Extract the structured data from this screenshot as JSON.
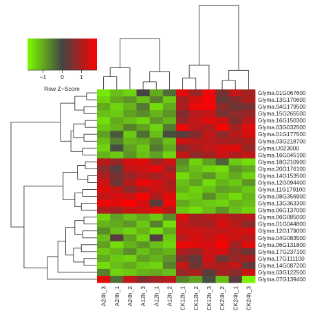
{
  "chart_data": {
    "type": "heatmap",
    "title": "",
    "colorkey": {
      "title": "Row Z−Score",
      "ticks": [
        "−1",
        "0",
        "1"
      ],
      "tick_values": [
        -1,
        0,
        1
      ],
      "range": [
        -1.8,
        1.8
      ],
      "low_color": "#7cfc00",
      "mid_color": "#444444",
      "high_color": "#ff0000"
    },
    "columns": [
      "A24h_3",
      "A24h_1",
      "A24h_2",
      "A12h_3",
      "A12h_1",
      "A12h_2",
      "CK12h_1",
      "CK12h_2",
      "CK12h_3",
      "CK24h_2",
      "CK24h_1",
      "CK24h_3"
    ],
    "rows": [
      "Glyma.01G067600",
      "Glyma.13G170600",
      "Glyma.04G179500",
      "Glyma.15G265500",
      "Glyma.16G150300",
      "Glyma.03G032500",
      "Glyma.01G177500",
      "Glyma.03G218700",
      "Glyma.U023000",
      "Glyma.16G045100",
      "Glyma.18G210900",
      "Glyma.20G176100",
      "Glyma.14G153500",
      "Glyma.12G094400",
      "Glyma.11G179100",
      "Glyma.08G356900",
      "Glyma.13G363300",
      "Glyma.06G137000",
      "Glyma.06G085000",
      "Glyma.01G044800",
      "Glyma.12G179000",
      "Glyma.04G083500",
      "Glyma.06G131800",
      "Glyma.17G237100",
      "Glyma.17G111100",
      "Glyma.14G087200",
      "Glyma.03G122500",
      "Glyma.07G139400"
    ],
    "values": [
      [
        -1.6,
        -1.2,
        -1.4,
        0.0,
        -1.0,
        -0.4,
        1.5,
        0.8,
        1.6,
        0.5,
        1.2,
        0.9
      ],
      [
        -1.4,
        -1.0,
        -0.8,
        -1.2,
        -0.6,
        -1.3,
        0.9,
        1.4,
        1.7,
        0.3,
        0.6,
        1.0
      ],
      [
        -1.0,
        -1.4,
        -1.1,
        -0.5,
        -1.5,
        -1.0,
        1.0,
        1.6,
        1.7,
        0.7,
        0.4,
        0.5
      ],
      [
        -1.2,
        -1.3,
        -0.9,
        -0.7,
        -1.1,
        -0.8,
        0.6,
        1.1,
        1.2,
        0.5,
        0.7,
        0.8
      ],
      [
        -1.5,
        -1.0,
        -1.2,
        -1.4,
        -0.8,
        -1.1,
        0.8,
        1.2,
        1.5,
        1.3,
        0.6,
        1.1
      ],
      [
        -1.3,
        -1.1,
        -0.6,
        -0.9,
        -1.4,
        -0.5,
        1.6,
        1.1,
        1.0,
        1.7,
        0.9,
        1.5
      ],
      [
        -0.9,
        -0.2,
        -1.3,
        -0.4,
        -1.2,
        -0.1,
        0.2,
        0.6,
        1.2,
        0.7,
        1.1,
        1.4
      ],
      [
        -1.2,
        -0.6,
        -1.1,
        -1.0,
        -0.7,
        -1.2,
        1.3,
        1.1,
        1.1,
        1.0,
        0.9,
        1.0
      ],
      [
        -1.4,
        -0.1,
        -0.9,
        -1.3,
        -0.5,
        -1.0,
        0.6,
        1.0,
        1.2,
        1.4,
        1.5,
        0.8
      ],
      [
        -1.1,
        -1.3,
        -0.8,
        -1.2,
        -0.9,
        -1.4,
        1.2,
        0.7,
        0.9,
        1.3,
        1.0,
        1.2
      ],
      [
        1.1,
        0.8,
        1.4,
        1.5,
        0.9,
        1.3,
        -0.7,
        -1.4,
        -0.9,
        -0.3,
        -1.3,
        -1.5
      ],
      [
        0.7,
        0.2,
        1.2,
        1.3,
        1.6,
        0.9,
        -0.9,
        -1.2,
        -1.4,
        -1.5,
        -0.8,
        -1.0
      ],
      [
        1.0,
        0.5,
        0.8,
        1.1,
        0.9,
        1.2,
        -1.5,
        -1.1,
        -0.8,
        -1.3,
        -1.0,
        -1.4
      ],
      [
        1.3,
        0.4,
        1.1,
        1.6,
        1.4,
        1.0,
        -1.2,
        -0.9,
        -1.5,
        -1.1,
        -1.3,
        -0.8
      ],
      [
        1.5,
        1.2,
        0.7,
        1.0,
        1.3,
        1.1,
        -1.1,
        -1.4,
        -1.2,
        -0.9,
        -1.0,
        -1.3
      ],
      [
        1.2,
        1.4,
        1.3,
        1.7,
        1.0,
        1.5,
        -1.4,
        -1.3,
        -0.7,
        -1.2,
        -1.5,
        -1.1
      ],
      [
        1.6,
        1.5,
        1.8,
        1.4,
        0.2,
        1.6,
        -1.0,
        -1.2,
        -1.3,
        -1.4,
        -1.1,
        -1.2
      ],
      [
        1.0,
        0.9,
        1.2,
        1.3,
        1.5,
        1.1,
        -1.3,
        -1.5,
        -1.2,
        -0.8,
        -1.2,
        -1.4
      ],
      [
        -1.4,
        -0.9,
        -1.2,
        -1.0,
        -1.3,
        -0.7,
        1.4,
        0.9,
        1.1,
        1.2,
        1.0,
        1.1
      ],
      [
        -1.1,
        -1.0,
        -0.8,
        -1.3,
        -0.6,
        -1.5,
        1.2,
        1.0,
        0.9,
        1.4,
        1.1,
        0.7
      ],
      [
        -0.7,
        -1.2,
        -1.4,
        -1.1,
        -1.5,
        -1.0,
        1.3,
        1.3,
        1.2,
        1.2,
        1.3,
        1.4
      ],
      [
        -1.2,
        0.2,
        -0.9,
        -1.4,
        0.1,
        -1.3,
        1.1,
        1.4,
        1.2,
        1.5,
        1.3,
        1.1
      ],
      [
        -0.9,
        -1.5,
        -1.1,
        -0.8,
        -1.2,
        -1.4,
        1.6,
        1.5,
        1.4,
        1.7,
        0.9,
        1.5
      ],
      [
        -1.3,
        -1.1,
        -0.7,
        -1.2,
        -0.9,
        -1.1,
        1.0,
        0.8,
        1.3,
        1.4,
        0.7,
        0.4
      ],
      [
        -1.0,
        -1.3,
        -1.4,
        -0.9,
        -1.1,
        -0.8,
        0.6,
        0.3,
        1.3,
        0.4,
        0.8,
        1.0
      ],
      [
        -1.5,
        -1.2,
        -1.0,
        -1.3,
        -1.4,
        -0.6,
        1.2,
        0.4,
        1.1,
        1.0,
        1.2,
        0.3
      ],
      [
        -0.6,
        -1.4,
        -1.3,
        -1.1,
        -1.0,
        -1.2,
        0.8,
        1.0,
        0.2,
        0.9,
        0.7,
        1.3
      ],
      [
        1.5,
        -0.4,
        1.2,
        0.6,
        0.9,
        1.1,
        -0.6,
        -0.9,
        -0.1,
        -1.2,
        0.2,
        -1.7
      ]
    ],
    "col_dendrogram": [
      {
        "left": 0,
        "right": 1,
        "height": 0.5
      },
      {
        "left": 3,
        "right": 4,
        "height": 0.3
      },
      {
        "left": 6,
        "right": 7,
        "height": 0.45
      },
      {
        "left": 9,
        "right": 10,
        "height": 0.35
      },
      {
        "left": 12,
        "right": 2,
        "height": 0.85
      },
      {
        "left": 13,
        "right": 5,
        "height": 0.7
      },
      {
        "left": 14,
        "right": 8,
        "height": 0.95
      },
      {
        "left": 15,
        "right": 11,
        "height": 0.75
      },
      {
        "left": 16,
        "right": 17,
        "height": 2.0
      },
      {
        "left": 18,
        "right": 19,
        "height": 3.3
      }
    ],
    "row_dendrogram": [
      {
        "left": 0,
        "right": 1,
        "height": 0.4
      },
      {
        "left": 2,
        "right": 3,
        "height": 0.5
      },
      {
        "left": 28,
        "right": 29,
        "height": 0.85
      },
      {
        "left": 4,
        "right": 5,
        "height": 0.45
      },
      {
        "left": 6,
        "right": 7,
        "height": 0.5
      },
      {
        "left": 31,
        "right": 32,
        "height": 0.9
      },
      {
        "left": 8,
        "right": 9,
        "height": 0.55
      },
      {
        "left": 33,
        "right": 34,
        "height": 1.0
      },
      {
        "left": 30,
        "right": 35,
        "height": 1.4
      },
      {
        "left": 10,
        "right": 11,
        "height": 0.45
      },
      {
        "left": 12,
        "right": 13,
        "height": 0.35
      },
      {
        "left": 37,
        "right": 38,
        "height": 0.75
      },
      {
        "left": 14,
        "right": 15,
        "height": 0.55
      },
      {
        "left": 16,
        "right": 17,
        "height": 0.6
      },
      {
        "left": 40,
        "right": 41,
        "height": 0.85
      },
      {
        "left": 39,
        "right": 42,
        "height": 1.3
      },
      {
        "left": 18,
        "right": 19,
        "height": 0.5
      },
      {
        "left": 20,
        "right": 21,
        "height": 0.55
      },
      {
        "left": 44,
        "right": 45,
        "height": 0.85
      },
      {
        "left": 22,
        "right": 23,
        "height": 0.6
      },
      {
        "left": 24,
        "right": 25,
        "height": 0.5
      },
      {
        "left": 47,
        "right": 48,
        "height": 0.9
      },
      {
        "left": 46,
        "right": 49,
        "height": 1.2
      },
      {
        "left": 50,
        "right": 26,
        "height": 1.5
      },
      {
        "left": 51,
        "right": 27,
        "height": 1.9
      },
      {
        "left": 43,
        "right": 52,
        "height": 2.8
      },
      {
        "left": 36,
        "right": 53,
        "height": 3.3
      }
    ]
  }
}
